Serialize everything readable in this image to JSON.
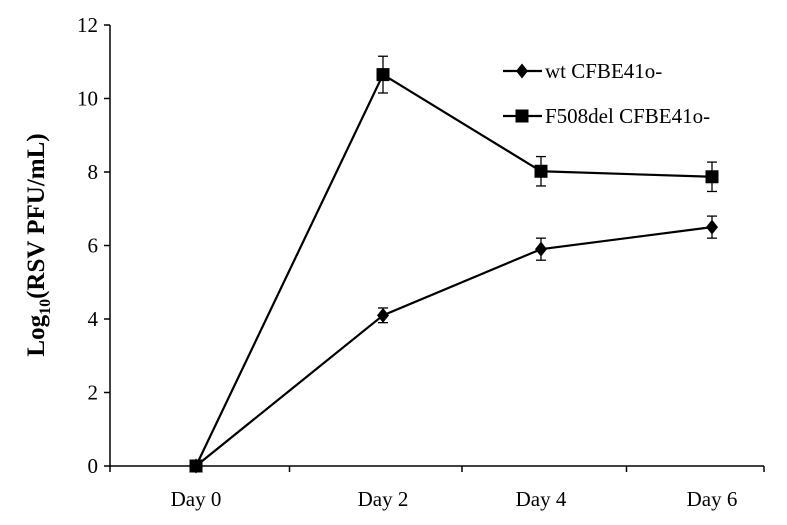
{
  "chart_data": {
    "type": "line",
    "title": "",
    "xlabel": "",
    "ylabel": {
      "prefix": "Log",
      "subscript": "10",
      "suffix": "(RSV PFU/mL)"
    },
    "categories": [
      "Day 0",
      "Day  2",
      "Day 4",
      "Day 6"
    ],
    "ylim": [
      0,
      12
    ],
    "yticks": [
      0,
      2,
      4,
      6,
      8,
      10,
      12
    ],
    "grid": false,
    "legend_position": "top-right",
    "series": [
      {
        "name": "wt CFBE41o-",
        "marker": "diamond",
        "color": "#000000",
        "values": [
          0,
          4.1,
          5.9,
          6.5
        ],
        "errors": [
          0,
          0.2,
          0.3,
          0.3
        ]
      },
      {
        "name": "F508del CFBE41o-",
        "marker": "square",
        "color": "#000000",
        "values": [
          0,
          10.65,
          8.02,
          7.87
        ],
        "errors": [
          0,
          0.5,
          0.4,
          0.4
        ]
      }
    ]
  }
}
